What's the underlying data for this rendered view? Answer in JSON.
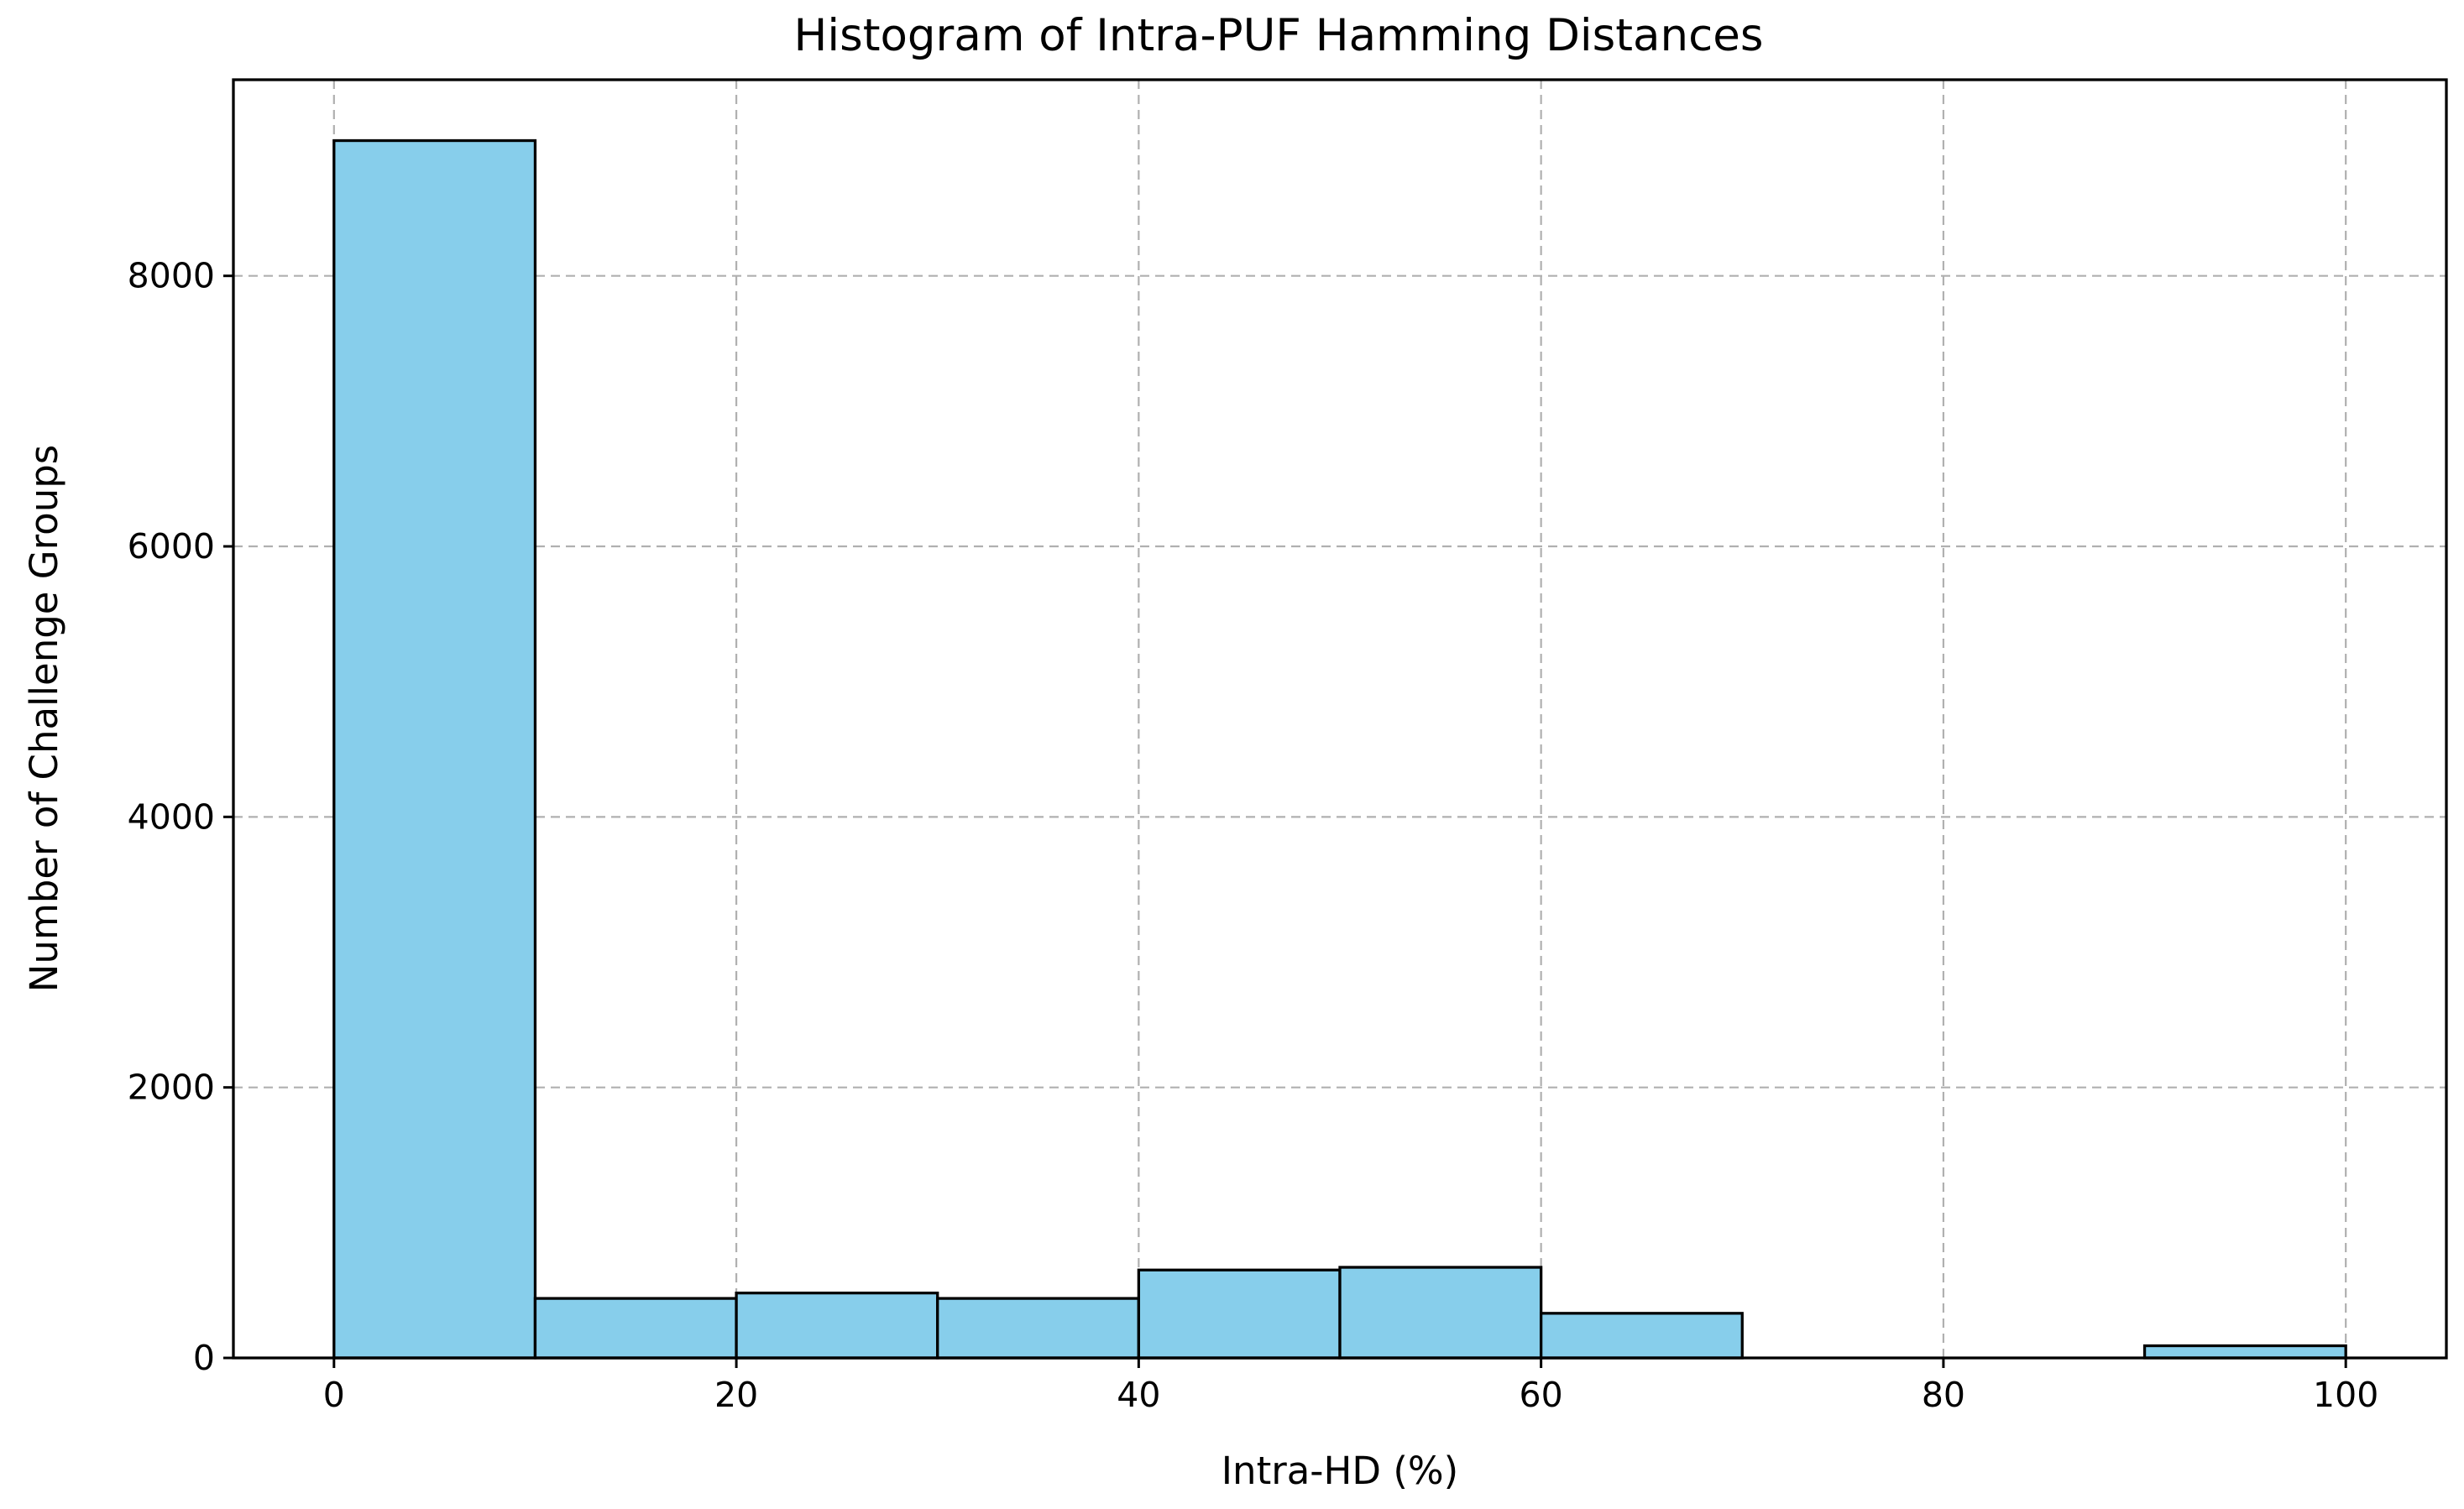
{
  "chart_data": {
    "type": "bar",
    "title": "Histogram of Intra-PUF Hamming Distances",
    "xlabel": "Intra-HD (%)",
    "ylabel": "Number of Challenge Groups",
    "bin_edges": [
      0,
      10,
      20,
      30,
      40,
      50,
      60,
      70,
      80,
      90,
      100
    ],
    "values": [
      9000,
      440,
      480,
      440,
      650,
      670,
      330,
      0,
      0,
      90
    ],
    "xlim": [
      -5,
      105
    ],
    "ylim": [
      0,
      9450
    ],
    "xticks": [
      0,
      20,
      40,
      60,
      80,
      100
    ],
    "yticks": [
      0,
      2000,
      4000,
      6000,
      8000
    ],
    "grid": true,
    "bar_color": "#87ceeb",
    "edge_color": "#000000"
  }
}
